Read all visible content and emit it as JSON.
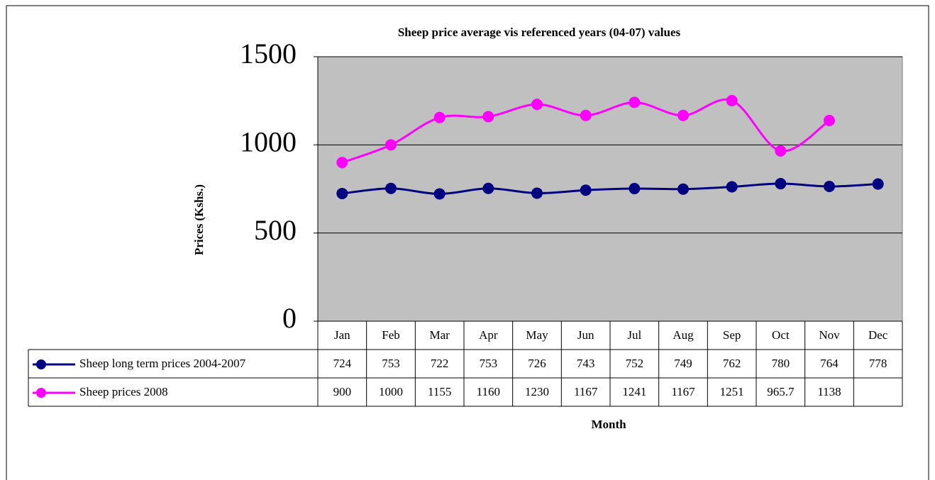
{
  "chart_data": {
    "type": "line",
    "title": "Sheep price average vis referenced years (04-07) values",
    "y_label": "Prices (Kshs.)",
    "x_label": "Month",
    "categories": [
      "Jan",
      "Feb",
      "Mar",
      "Apr",
      "May",
      "Jun",
      "Jul",
      "Aug",
      "Sep",
      "Oct",
      "Nov",
      "Dec"
    ],
    "series": [
      {
        "name": "Sheep long term prices 2004-2007",
        "color": "#000080",
        "values": [
          724,
          753,
          722,
          753,
          726,
          743,
          752,
          749,
          762,
          780,
          764,
          778
        ]
      },
      {
        "name": "Sheep prices 2008",
        "color": "#ff00ff",
        "values": [
          900,
          1000,
          1155,
          1160,
          1230,
          1167,
          1241,
          1167,
          1251,
          965.7,
          1138,
          null
        ]
      }
    ],
    "ylim": [
      0,
      1500
    ],
    "yticks": [
      0,
      500,
      1000,
      1500
    ],
    "grid": true,
    "background": "#c0c0c0"
  }
}
